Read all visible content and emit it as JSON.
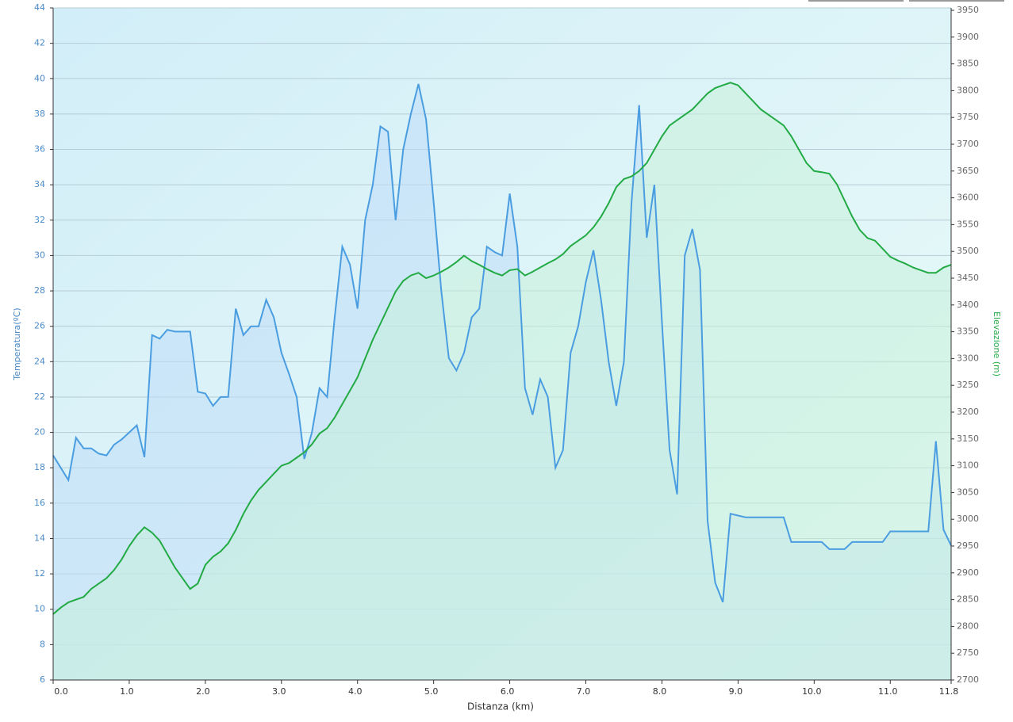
{
  "chart_data": {
    "type": "area",
    "x_label": "Distanza  (km)",
    "y_label": "Temperatura(ºC)",
    "y2_label": "Elevazione (m)",
    "x": [
      0,
      0.1,
      0.2,
      0.3,
      0.4,
      0.5,
      0.6,
      0.7,
      0.8,
      0.9,
      1,
      1.1,
      1.2,
      1.3,
      1.4,
      1.5,
      1.6,
      1.7,
      1.8,
      1.9,
      2,
      2.1,
      2.2,
      2.3,
      2.4,
      2.5,
      2.6,
      2.7,
      2.8,
      2.9,
      3,
      3.1,
      3.2,
      3.3,
      3.4,
      3.5,
      3.6,
      3.7,
      3.8,
      3.9,
      4,
      4.1,
      4.2,
      4.3,
      4.4,
      4.5,
      4.6,
      4.7,
      4.8,
      4.9,
      5,
      5.1,
      5.2,
      5.3,
      5.4,
      5.5,
      5.6,
      5.7,
      5.8,
      5.9,
      6,
      6.1,
      6.2,
      6.3,
      6.4,
      6.5,
      6.6,
      6.7,
      6.8,
      6.9,
      7,
      7.1,
      7.2,
      7.3,
      7.4,
      7.5,
      7.6,
      7.7,
      7.8,
      7.9,
      8,
      8.1,
      8.2,
      8.3,
      8.4,
      8.5,
      8.6,
      8.7,
      8.8,
      8.9,
      9,
      9.1,
      9.2,
      9.3,
      9.4,
      9.5,
      9.6,
      9.7,
      9.8,
      9.9,
      10,
      10.1,
      10.2,
      10.3,
      10.4,
      10.5,
      10.6,
      10.7,
      10.8,
      10.9,
      11,
      11.1,
      11.2,
      11.3,
      11.4,
      11.5,
      11.6,
      11.7,
      11.8
    ],
    "series": [
      {
        "color": "#4a9de0",
        "fill_color": "#bfdcf7",
        "values": [
          18.7,
          18,
          17.3,
          19.7,
          19.1,
          19.1,
          18.8,
          18.7,
          19.3,
          19.6,
          20,
          20.4,
          18.6,
          25.5,
          25.3,
          25.8,
          25.7,
          25.7,
          25.7,
          22.3,
          22.2,
          21.5,
          22,
          22,
          27,
          25.5,
          26,
          26,
          27.5,
          26.5,
          24.5,
          23.3,
          22,
          18.5,
          20,
          22.5,
          22,
          26.5,
          30.5,
          29.5,
          27,
          32,
          34,
          37.3,
          37,
          32,
          36,
          38,
          39.7,
          37.7,
          33,
          28,
          24.2,
          23.5,
          24.5,
          26.5,
          27,
          30.5,
          30.2,
          30,
          33.5,
          30.5,
          22.5,
          21,
          23,
          22,
          18,
          19,
          24.5,
          26,
          28.5,
          30.3,
          27.5,
          24,
          21.5,
          24,
          33,
          38.5,
          31,
          34,
          26.2,
          19,
          16.5,
          30,
          31.5,
          29.2,
          15,
          11.5,
          10.4,
          15.4,
          15.3,
          15.2,
          15.2,
          15.2,
          15.2,
          15.2,
          15.2,
          13.8,
          13.8,
          13.8,
          13.8,
          13.8,
          13.4,
          13.4,
          13.4,
          13.8,
          13.8,
          13.8,
          13.8,
          13.8,
          14.4,
          14.4,
          14.4,
          14.4,
          14.4,
          14.4,
          19.5,
          14.5,
          13.6
        ]
      },
      {
        "color": "#22aa44",
        "fill_color": "#c9f0da",
        "axis": "y2",
        "values": [
          2823,
          2835,
          2845,
          2850,
          2855,
          2870,
          2880,
          2890,
          2905,
          2925,
          2950,
          2970,
          2985,
          2975,
          2960,
          2935,
          2910,
          2890,
          2870,
          2880,
          2915,
          2930,
          2940,
          2955,
          2980,
          3010,
          3035,
          3055,
          3070,
          3085,
          3100,
          3105,
          3115,
          3125,
          3140,
          3160,
          3170,
          3190,
          3215,
          3240,
          3265,
          3300,
          3335,
          3365,
          3395,
          3425,
          3445,
          3455,
          3460,
          3450,
          3455,
          3462,
          3470,
          3480,
          3492,
          3482,
          3475,
          3467,
          3460,
          3455,
          3465,
          3467,
          3455,
          3462,
          3470,
          3478,
          3485,
          3495,
          3510,
          3520,
          3530,
          3545,
          3565,
          3590,
          3620,
          3635,
          3640,
          3650,
          3665,
          3690,
          3715,
          3735,
          3745,
          3755,
          3765,
          3780,
          3795,
          3805,
          3810,
          3815,
          3810,
          3795,
          3780,
          3765,
          3755,
          3745,
          3735,
          3715,
          3690,
          3665,
          3650,
          3648,
          3645,
          3625,
          3595,
          3565,
          3540,
          3525,
          3520,
          3505,
          3490,
          3483,
          3477,
          3470,
          3465,
          3460,
          3460,
          3470,
          3475
        ]
      }
    ],
    "xlim": [
      0,
      11.8
    ],
    "xticks": [
      {
        "value": 0,
        "label": "0.0"
      },
      {
        "value": 1,
        "label": "1.0"
      },
      {
        "value": 2,
        "label": "2.0"
      },
      {
        "value": 3,
        "label": "3.0"
      },
      {
        "value": 4,
        "label": "4.0"
      },
      {
        "value": 5,
        "label": "5.0"
      },
      {
        "value": 6,
        "label": "6.0"
      },
      {
        "value": 7,
        "label": "7.0"
      },
      {
        "value": 8,
        "label": "8.0"
      },
      {
        "value": 9,
        "label": "9.0"
      },
      {
        "value": 10,
        "label": "10.0"
      },
      {
        "value": 11,
        "label": "11.0"
      },
      11.8
    ],
    "ylim": [
      6,
      44
    ],
    "yticks": [
      6,
      8,
      10,
      12,
      14,
      16,
      18,
      20,
      22,
      24,
      26,
      28,
      30,
      32,
      34,
      36,
      38,
      40,
      42,
      44
    ],
    "y2lim": [
      2700,
      3950
    ],
    "y2ticks": [
      2700,
      2750,
      2800,
      2850,
      2900,
      2950,
      3000,
      3050,
      3100,
      3150,
      3200,
      3250,
      3300,
      3350,
      3400,
      3450,
      3500,
      3550,
      3600,
      3650,
      3700,
      3750,
      3800,
      3850,
      3900,
      3950
    ],
    "grid": true
  }
}
